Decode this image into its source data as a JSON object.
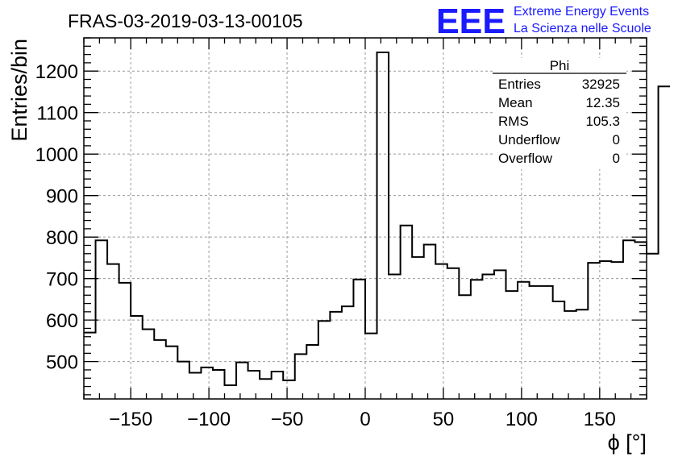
{
  "chart_data": {
    "type": "histogram",
    "title": "FRAS-03-2019-03-13-00105",
    "xlabel": "ϕ [°]",
    "ylabel": "Entries/bin",
    "xlim": [
      -180,
      180
    ],
    "ylim": [
      410,
      1280
    ],
    "grid": true,
    "xticks": [
      -150,
      -100,
      -50,
      0,
      50,
      100,
      150
    ],
    "xtick_labels": [
      "−150",
      "−100",
      "−50",
      "0",
      "50",
      "100",
      "150"
    ],
    "yticks": [
      500,
      600,
      700,
      800,
      900,
      1000,
      1100,
      1200
    ],
    "ytick_labels": [
      "500",
      "600",
      "700",
      "800",
      "900",
      "1000",
      "1100",
      "1200"
    ],
    "bin_width": 7.5,
    "bin_start": -180,
    "values": [
      570,
      792,
      735,
      690,
      610,
      578,
      552,
      537,
      500,
      473,
      486,
      480,
      443,
      498,
      478,
      458,
      476,
      455,
      518,
      540,
      598,
      620,
      633,
      698,
      568,
      1245,
      710,
      828,
      752,
      782,
      735,
      725,
      660,
      697,
      710,
      720,
      670,
      692,
      682,
      682,
      645,
      622,
      625,
      738,
      742,
      740,
      792,
      788,
      760,
      1163
    ],
    "stats_box": {
      "title": "Phi",
      "rows": [
        {
          "label": "Entries",
          "value": "32925"
        },
        {
          "label": "Mean",
          "value": "12.35"
        },
        {
          "label": "RMS",
          "value": "105.3"
        },
        {
          "label": "Underflow",
          "value": "0"
        },
        {
          "label": "Overflow",
          "value": "0"
        }
      ]
    },
    "logo": {
      "mark": "EEE",
      "line1": "Extreme Energy Events",
      "line2": "La Scienza nelle Scuole"
    }
  }
}
